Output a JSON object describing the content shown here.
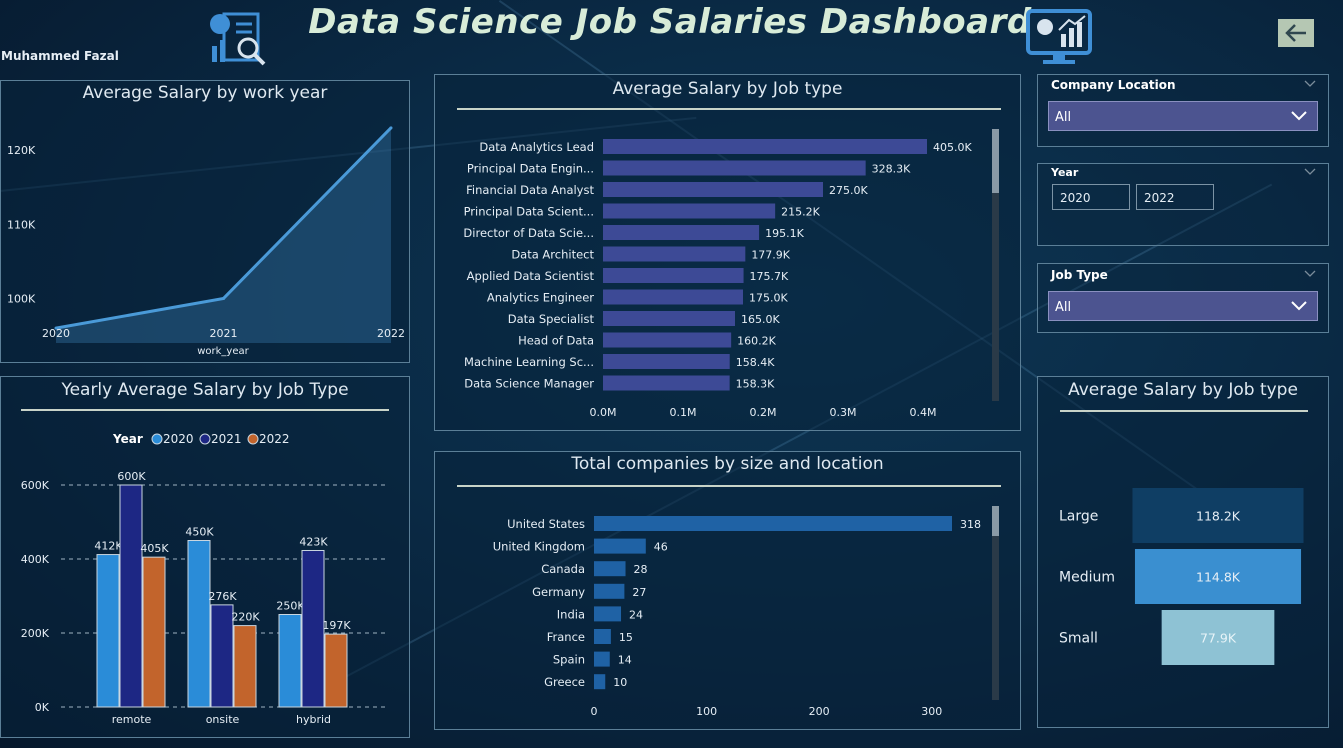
{
  "header": {
    "title": "Data Science Job Salaries Dashboard",
    "author": "Muhammed Fazal",
    "back_icon": "arrow-left-icon"
  },
  "colors": {
    "line": "#4a9ad8",
    "bar_job": "#3d4a96",
    "bar_company": "#1f62a5",
    "y2020": "#2a8cd8",
    "y2021": "#1d2784",
    "y2022": "#c2642c",
    "size_large": "#0f3e64",
    "size_medium": "#3a8fd0",
    "size_small": "#8ec2d4"
  },
  "panels": {
    "work_year_title": "Average Salary by work year",
    "yearly_title": "Yearly Average Salary by Job Type",
    "job_type_title": "Average Salary by Job type",
    "companies_title": "Total companies by size and location",
    "size_title": "Average Salary by Job type"
  },
  "slicers": {
    "company_location": {
      "label": "Company Location",
      "value": "All"
    },
    "year": {
      "label": "Year",
      "from": "2020",
      "to": "2022"
    },
    "job_type": {
      "label": "Job Type",
      "value": "All"
    }
  },
  "chart_data": [
    {
      "type": "area",
      "title": "Average Salary by work year",
      "xlabel": "work_year",
      "ylabel": "",
      "x": [
        "2020",
        "2021",
        "2022"
      ],
      "values": [
        96000,
        100000,
        123000
      ],
      "yticks": [
        "100K",
        "110K",
        "120K"
      ],
      "ylim": [
        94000,
        125000
      ]
    },
    {
      "type": "bar",
      "title": "Yearly Average Salary by Job Type",
      "legend_title": "Year",
      "categories": [
        "remote",
        "onsite",
        "hybrid"
      ],
      "series": [
        {
          "name": "2020",
          "values": [
            412,
            450,
            250
          ],
          "labels": [
            "412K",
            "450K",
            "250K"
          ]
        },
        {
          "name": "2021",
          "values": [
            600,
            276,
            423
          ],
          "labels": [
            "600K",
            "276K",
            "423K"
          ]
        },
        {
          "name": "2022",
          "values": [
            405,
            220,
            197
          ],
          "labels": [
            "405K",
            "220K",
            "197K"
          ]
        }
      ],
      "yticks": [
        "0K",
        "200K",
        "400K",
        "600K"
      ],
      "ylim": [
        0,
        600
      ]
    },
    {
      "type": "bar",
      "orientation": "horizontal",
      "title": "Average Salary by Job type",
      "categories": [
        "Data Analytics Lead",
        "Principal Data Engin...",
        "Financial Data Analyst",
        "Principal Data Scient...",
        "Director of Data Scie...",
        "Data Architect",
        "Applied Data Scientist",
        "Analytics Engineer",
        "Data Specialist",
        "Head of Data",
        "Machine Learning Sc...",
        "Data Science Manager"
      ],
      "values": [
        405.0,
        328.3,
        275.0,
        215.2,
        195.1,
        177.9,
        175.7,
        175.0,
        165.0,
        160.2,
        158.4,
        158.3
      ],
      "labels": [
        "405.0K",
        "328.3K",
        "275.0K",
        "215.2K",
        "195.1K",
        "177.9K",
        "175.7K",
        "175.0K",
        "165.0K",
        "160.2K",
        "158.4K",
        "158.3K"
      ],
      "xticks": [
        "0.0M",
        "0.1M",
        "0.2M",
        "0.3M",
        "0.4M"
      ],
      "xlim": [
        0,
        0.42
      ]
    },
    {
      "type": "bar",
      "orientation": "horizontal",
      "title": "Total companies by size and location",
      "categories": [
        "United States",
        "United Kingdom",
        "Canada",
        "Germany",
        "India",
        "France",
        "Spain",
        "Greece"
      ],
      "values": [
        318,
        46,
        28,
        27,
        24,
        15,
        14,
        10
      ],
      "xticks": [
        "0",
        "100",
        "200",
        "300"
      ],
      "xlim": [
        0,
        318
      ]
    },
    {
      "type": "bar",
      "title": "Average Salary by Job type",
      "categories": [
        "Large",
        "Medium",
        "Small"
      ],
      "values": [
        118.2,
        114.8,
        77.9
      ],
      "labels": [
        "118.2K",
        "114.8K",
        "77.9K"
      ]
    }
  ]
}
